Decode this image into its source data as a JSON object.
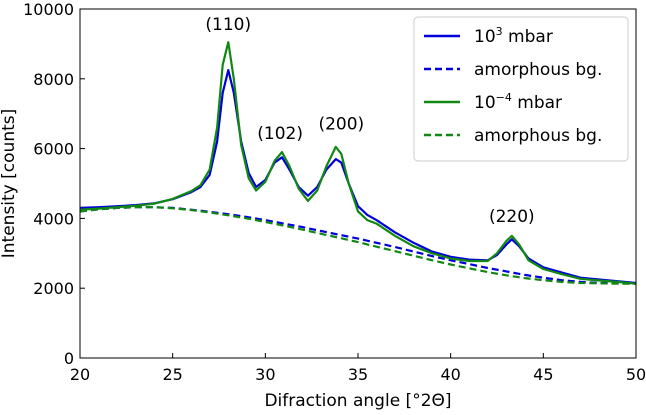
{
  "chart_data": {
    "type": "line",
    "title": "",
    "xlabel": "Difraction angle [°2Θ]",
    "ylabel": "Intensity [counts]",
    "xlim": [
      20,
      50
    ],
    "ylim": [
      0,
      10000
    ],
    "xticks": [
      20,
      25,
      30,
      35,
      40,
      45,
      50
    ],
    "yticks": [
      0,
      2000,
      4000,
      6000,
      8000,
      10000
    ],
    "grid": false,
    "legend_position": "top-right",
    "series": [
      {
        "name": "10^3 mbar",
        "legend_base": "10",
        "legend_exp": "3",
        "legend_suffix": " mbar",
        "color": "#0000dd",
        "style": "solid",
        "x": [
          20,
          21,
          22,
          23,
          24,
          25,
          26,
          26.5,
          27,
          27.4,
          27.7,
          28.0,
          28.3,
          28.7,
          29.1,
          29.5,
          30.0,
          30.5,
          30.9,
          31.3,
          31.8,
          32.3,
          32.8,
          33.3,
          33.8,
          34.1,
          34.5,
          35.0,
          35.5,
          36,
          37,
          38,
          39,
          40,
          41,
          42,
          42.5,
          43,
          43.3,
          43.7,
          44.2,
          45,
          46,
          47,
          48,
          49,
          50
        ],
        "y": [
          4300,
          4320,
          4350,
          4380,
          4430,
          4550,
          4750,
          4900,
          5250,
          6200,
          7600,
          8250,
          7600,
          6200,
          5300,
          4900,
          5100,
          5600,
          5750,
          5400,
          4900,
          4650,
          4900,
          5400,
          5700,
          5600,
          5000,
          4350,
          4100,
          3950,
          3600,
          3300,
          3050,
          2900,
          2820,
          2800,
          2950,
          3250,
          3400,
          3200,
          2850,
          2600,
          2450,
          2300,
          2250,
          2200,
          2150
        ]
      },
      {
        "name": "amorphous bg.",
        "color": "#0000dd",
        "style": "dashed",
        "x": [
          20,
          21,
          22,
          23,
          24,
          25,
          26,
          27,
          28,
          29,
          30,
          31,
          32,
          33,
          34,
          35,
          36,
          37,
          38,
          39,
          40,
          41,
          42,
          43,
          44,
          45,
          46,
          47,
          48,
          49,
          50
        ],
        "y": [
          4200,
          4260,
          4300,
          4320,
          4320,
          4300,
          4250,
          4190,
          4120,
          4040,
          3950,
          3850,
          3750,
          3640,
          3530,
          3420,
          3300,
          3180,
          3050,
          2920,
          2800,
          2690,
          2580,
          2480,
          2380,
          2300,
          2230,
          2180,
          2150,
          2140,
          2130
        ]
      },
      {
        "name": "10^-4 mbar",
        "legend_base": "10",
        "legend_exp": "−4",
        "legend_suffix": " mbar",
        "color": "#118811",
        "style": "solid",
        "x": [
          20,
          21,
          22,
          23,
          24,
          25,
          26,
          26.5,
          27,
          27.4,
          27.7,
          28.0,
          28.3,
          28.7,
          29.1,
          29.5,
          30.0,
          30.5,
          30.9,
          31.3,
          31.8,
          32.3,
          32.8,
          33.3,
          33.8,
          34.1,
          34.5,
          35.0,
          35.5,
          36,
          37,
          38,
          39,
          40,
          41,
          42,
          42.5,
          43,
          43.3,
          43.7,
          44.2,
          45,
          46,
          47,
          48,
          49,
          50
        ],
        "y": [
          4250,
          4280,
          4320,
          4360,
          4420,
          4560,
          4780,
          4950,
          5400,
          6600,
          8400,
          9050,
          8000,
          6100,
          5150,
          4800,
          5050,
          5650,
          5900,
          5500,
          4850,
          4500,
          4800,
          5500,
          6050,
          5850,
          5000,
          4200,
          3950,
          3850,
          3500,
          3200,
          3000,
          2850,
          2780,
          2780,
          3000,
          3350,
          3500,
          3250,
          2800,
          2550,
          2400,
          2270,
          2220,
          2180,
          2130
        ]
      },
      {
        "name": "amorphous bg.",
        "color": "#118811",
        "style": "dashed",
        "x": [
          20,
          21,
          22,
          23,
          24,
          25,
          26,
          27,
          28,
          29,
          30,
          31,
          32,
          33,
          34,
          35,
          36,
          37,
          38,
          39,
          40,
          41,
          42,
          43,
          44,
          45,
          46,
          47,
          48,
          49,
          50
        ],
        "y": [
          4200,
          4260,
          4300,
          4320,
          4320,
          4290,
          4240,
          4170,
          4090,
          4000,
          3900,
          3790,
          3680,
          3560,
          3440,
          3320,
          3190,
          3060,
          2930,
          2800,
          2680,
          2570,
          2460,
          2370,
          2290,
          2230,
          2180,
          2150,
          2140,
          2130,
          2130
        ]
      }
    ],
    "annotations": [
      {
        "text": "(110)",
        "x": 28.0,
        "y": 9400
      },
      {
        "text": "(102)",
        "x": 30.8,
        "y": 6280
      },
      {
        "text": "(200)",
        "x": 34.1,
        "y": 6550
      },
      {
        "text": "(220)",
        "x": 43.3,
        "y": 3900
      }
    ]
  }
}
